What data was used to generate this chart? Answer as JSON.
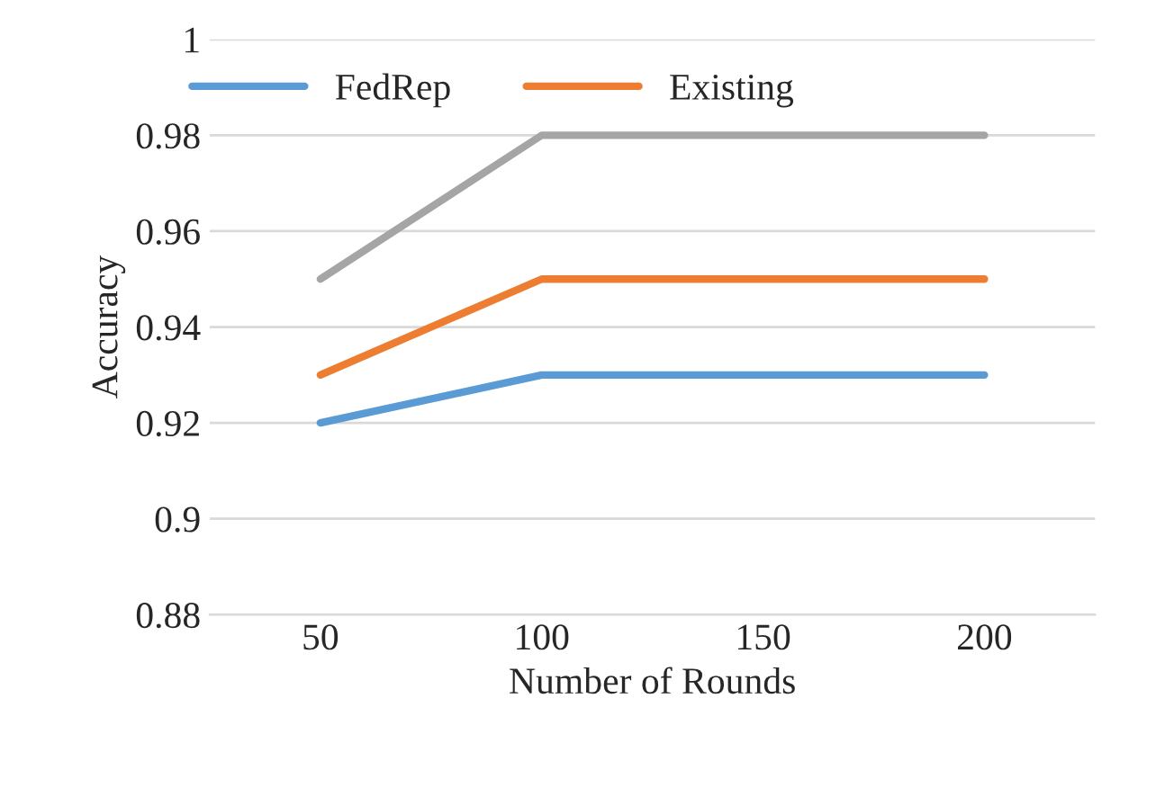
{
  "chart_data": {
    "type": "line",
    "ylabel": "Accuracy",
    "xlabel": "Number of Rounds",
    "categories": [
      "50",
      "100",
      "150",
      "200"
    ],
    "series": [
      {
        "name": "FedRep",
        "color": "#5b9bd5",
        "values": [
          0.92,
          0.93,
          0.93,
          0.93
        ]
      },
      {
        "name": "Existing",
        "color": "#ed7d31",
        "values": [
          0.93,
          0.95,
          0.95,
          0.95
        ]
      },
      {
        "color": "#a5a5a5",
        "values": [
          0.95,
          0.98,
          0.98,
          0.98
        ]
      }
    ],
    "ylim": [
      0.88,
      1
    ],
    "yticks": [
      0.88,
      0.9,
      0.92,
      0.94,
      0.96,
      0.98,
      1
    ],
    "grid": "y",
    "legend": "top",
    "marker": "none",
    "line_style": "solid"
  }
}
